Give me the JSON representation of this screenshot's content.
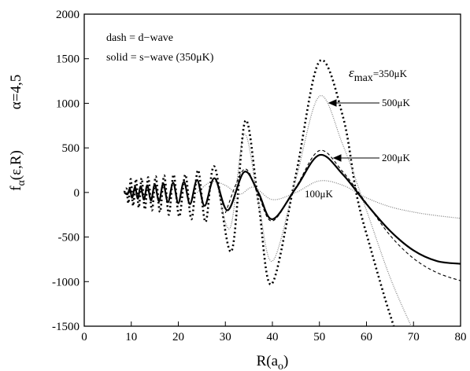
{
  "chart_data": {
    "type": "line",
    "x_label": {
      "main": "R(a",
      "sub": "o",
      "rest": ")"
    },
    "y_label": {
      "main": "f",
      "sub": "α",
      "rest": "(ε,R)"
    },
    "y_label_2": "α=4,5",
    "xlim": [
      0,
      80
    ],
    "xticks": [
      0,
      10,
      20,
      30,
      40,
      50,
      60,
      70,
      80
    ],
    "ylim": [
      -1500,
      2000
    ],
    "yticks": [
      -1500,
      -1000,
      -500,
      0,
      500,
      1000,
      1500,
      2000
    ],
    "notes": [
      "dash = d−wave",
      "solid = s−wave (350μK)"
    ],
    "series_labels": [
      {
        "main": "ε",
        "sub": "max",
        "rest": "=350μK"
      },
      "500μK",
      "200μK",
      "100μK"
    ],
    "series": [
      {
        "style": "dotted",
        "width": 2.6,
        "color": "#000000",
        "x": [
          8.5,
          9,
          9.4,
          9.9,
          10.4,
          11,
          11.6,
          12.2,
          12.9,
          13.6,
          14.4,
          15.2,
          16.1,
          17,
          18,
          19,
          20.2,
          21.5,
          22.8,
          24.2,
          25.8,
          27.7,
          31.3,
          34.2,
          37,
          39.8,
          45,
          50,
          55,
          58,
          61,
          64,
          65.8
        ],
        "values": [
          0,
          40,
          -120,
          150,
          -150,
          150,
          -170,
          160,
          -190,
          170,
          -200,
          180,
          -220,
          190,
          -250,
          200,
          -270,
          200,
          -300,
          250,
          -330,
          290,
          -660,
          800,
          -100,
          -1030,
          200,
          1470,
          850,
          -50,
          -650,
          -1200,
          -1500
        ]
      },
      {
        "style": "dotted",
        "width": 1.2,
        "color": "#777777",
        "x": [
          28,
          31,
          34,
          37,
          40,
          45,
          50,
          55,
          60,
          65,
          69.5
        ],
        "values": [
          150,
          -400,
          650,
          -100,
          -770,
          150,
          1080,
          530,
          -200,
          -950,
          -1500
        ]
      },
      {
        "style": "dashed",
        "width": 1.1,
        "color": "#000000",
        "x": [
          30,
          34,
          37,
          40,
          45,
          50,
          55,
          60,
          65,
          70,
          75,
          80
        ],
        "values": [
          -230,
          260,
          -30,
          -320,
          60,
          470,
          230,
          -120,
          -480,
          -740,
          -900,
          -990
        ]
      },
      {
        "style": "dotted",
        "width": 1.2,
        "color": "#777777",
        "x": [
          24,
          27,
          30,
          33,
          36,
          40,
          45,
          50,
          55,
          60,
          65,
          70,
          75,
          80
        ],
        "values": [
          0,
          120,
          80,
          -20,
          60,
          -80,
          0,
          130,
          80,
          -60,
          -160,
          -220,
          -260,
          -290
        ]
      },
      {
        "style": "solid",
        "width": 2.2,
        "color": "#000000",
        "x": [
          8.5,
          9.2,
          9.7,
          10.2,
          10.8,
          11.4,
          12,
          12.7,
          13.4,
          14.2,
          15,
          15.9,
          16.8,
          17.8,
          18.9,
          20,
          21.2,
          22.5,
          24,
          25.6,
          27.7,
          30.5,
          34,
          37,
          40,
          45,
          50,
          55,
          60,
          65,
          70,
          75,
          80
        ],
        "values": [
          0,
          -20,
          40,
          -60,
          60,
          -70,
          70,
          -80,
          80,
          -90,
          90,
          -100,
          100,
          -110,
          110,
          -120,
          120,
          -130,
          140,
          -150,
          160,
          -200,
          230,
          0,
          -300,
          50,
          420,
          200,
          -130,
          -430,
          -650,
          -770,
          -800
        ]
      }
    ]
  }
}
